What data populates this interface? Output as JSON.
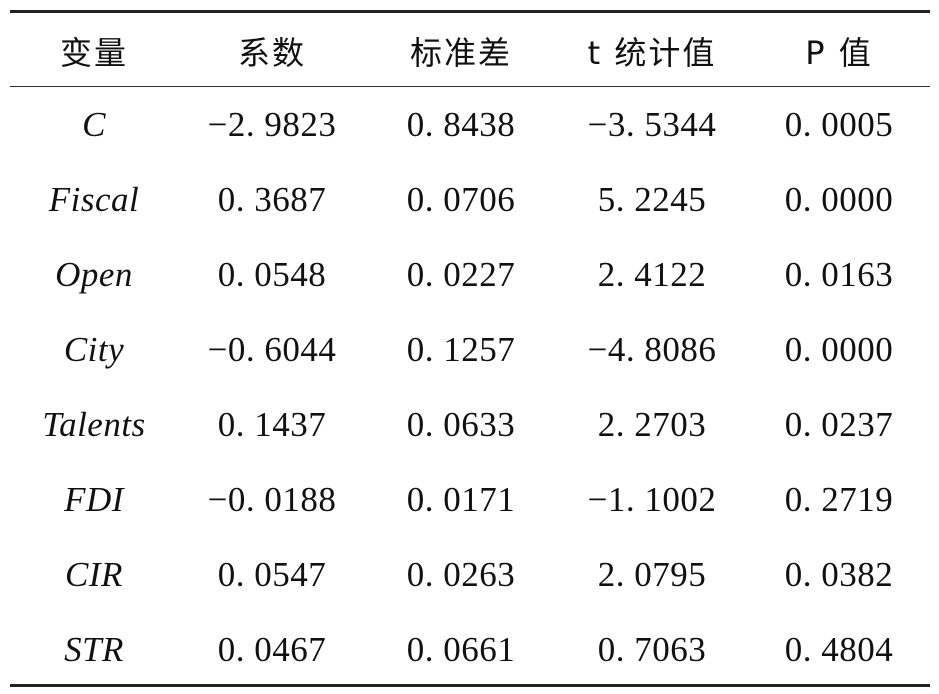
{
  "table": {
    "headers": [
      "变量",
      "系数",
      "标准差",
      "t 统计值",
      "P 值"
    ],
    "rows": [
      {
        "var": "C",
        "coef": "−2. 9823",
        "se": "0. 8438",
        "t": "−3. 5344",
        "p": "0. 0005"
      },
      {
        "var": "Fiscal",
        "coef": "0. 3687",
        "se": "0. 0706",
        "t": "5. 2245",
        "p": "0. 0000"
      },
      {
        "var": "Open",
        "coef": "0. 0548",
        "se": "0. 0227",
        "t": "2. 4122",
        "p": "0. 0163"
      },
      {
        "var": "City",
        "coef": "−0. 6044",
        "se": "0. 1257",
        "t": "−4. 8086",
        "p": "0. 0000"
      },
      {
        "var": "Talents",
        "coef": "0. 1437",
        "se": "0. 0633",
        "t": "2. 2703",
        "p": "0. 0237"
      },
      {
        "var": "FDI",
        "coef": "−0. 0188",
        "se": "0. 0171",
        "t": "−1. 1002",
        "p": "0. 2719"
      },
      {
        "var": "CIR",
        "coef": "0. 0547",
        "se": "0. 0263",
        "t": "2. 0795",
        "p": "0. 0382"
      },
      {
        "var": "STR",
        "coef": "0. 0467",
        "se": "0. 0661",
        "t": "0. 7063",
        "p": "0. 4804"
      }
    ]
  }
}
